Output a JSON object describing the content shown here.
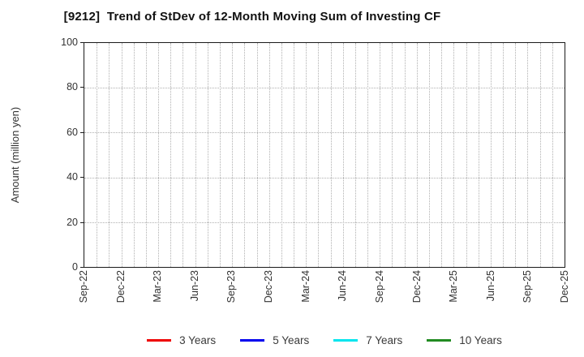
{
  "title": "[9212]  Trend of StDev of 12-Month Moving Sum of Investing CF",
  "chart_data": {
    "type": "line",
    "title": "[9212]  Trend of StDev of 12-Month Moving Sum of Investing CF",
    "xlabel": "",
    "ylabel": "Amount (million yen)",
    "ylim": [
      0,
      100
    ],
    "yticks": [
      0,
      20,
      40,
      60,
      80,
      100
    ],
    "x_tick_labels": [
      "Sep-22",
      "Dec-22",
      "Mar-23",
      "Jun-23",
      "Sep-23",
      "Dec-23",
      "Mar-24",
      "Jun-24",
      "Sep-24",
      "Dec-24",
      "Mar-25",
      "Jun-25",
      "Sep-25",
      "Dec-25"
    ],
    "x_minor_divisions_per_label": 3,
    "grid": true,
    "grid_style": "dotted",
    "legend_position": "bottom",
    "series": [
      {
        "name": "3 Years",
        "color": "#ee0000",
        "x": [],
        "values": []
      },
      {
        "name": "5 Years",
        "color": "#0000ee",
        "x": [],
        "values": []
      },
      {
        "name": "7 Years",
        "color": "#00e5ee",
        "x": [],
        "values": []
      },
      {
        "name": "10 Years",
        "color": "#228b22",
        "x": [],
        "values": []
      }
    ],
    "plotted_points_note": "no data series drawn in plot area"
  },
  "colors": {
    "axis": "#1a1a1a",
    "gridline": "#b0b0b0",
    "tick_text": "#333333",
    "title_text": "#111111",
    "background": "#ffffff"
  }
}
